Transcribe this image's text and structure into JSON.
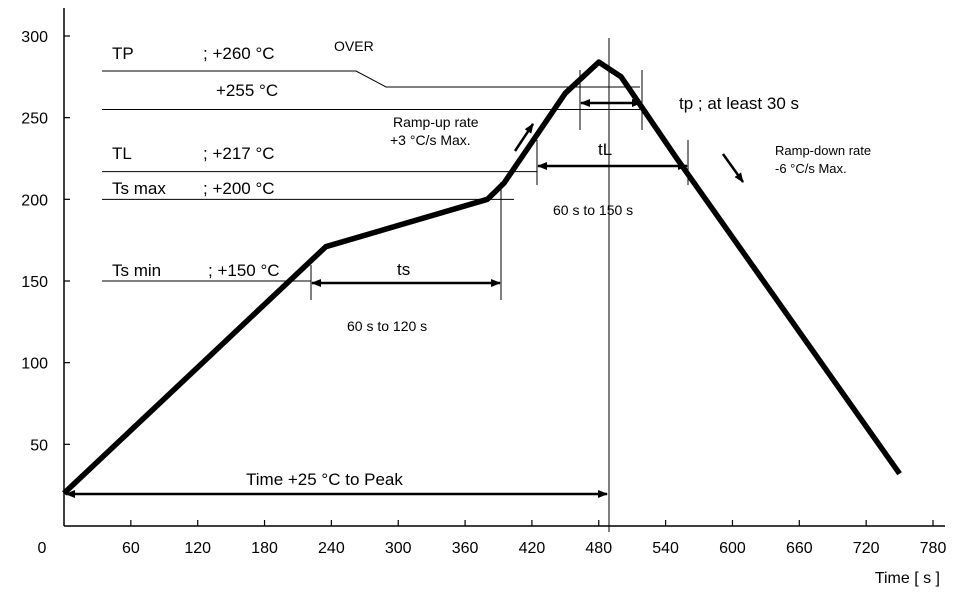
{
  "chart_data": {
    "type": "line",
    "title": "",
    "xlabel": "Time [ s ]",
    "ylabel": "",
    "xlim": [
      0,
      780
    ],
    "ylim": [
      0,
      300
    ],
    "x_ticks": [
      "0",
      "60",
      "120",
      "180",
      "240",
      "300",
      "360",
      "420",
      "480",
      "540",
      "600",
      "660",
      "720",
      "780"
    ],
    "y_ticks": [
      "50",
      "100",
      "150",
      "200",
      "250",
      "300"
    ],
    "grid": false,
    "series": [
      {
        "name": "",
        "x": [
          0,
          235,
          380,
          395,
          410,
          450,
          480,
          500,
          550,
          750
        ],
        "y": [
          20,
          171,
          200,
          210,
          225,
          265,
          284,
          275,
          225,
          32
        ]
      }
    ],
    "reference_lines": [
      {
        "label": "TP",
        "value_label": "; +260 °C",
        "y": 260
      },
      {
        "label": "",
        "value_label": "+255 °C",
        "y": 255
      },
      {
        "label": "TL",
        "value_label": "; +217 °C",
        "y": 217
      },
      {
        "label": "Ts max",
        "value_label": "; +200 °C",
        "y": 200
      },
      {
        "label": "Ts min",
        "value_label": "; +150 °C",
        "y": 150
      }
    ],
    "annotations": {
      "over": "OVER",
      "tp_text": "tp ; at least 30 s",
      "ramp_up_1": "Ramp-up rate",
      "ramp_up_2": "+3 °C/s Max.",
      "ramp_down_1": "Ramp-down rate",
      "ramp_down_2": "-6 °C/s Max.",
      "tL": "tL",
      "tL_range": "60 s  to  150 s",
      "ts": "ts",
      "ts_range": "60 s  to  120 s",
      "peak_time": "Time +25 °C to Peak"
    }
  }
}
